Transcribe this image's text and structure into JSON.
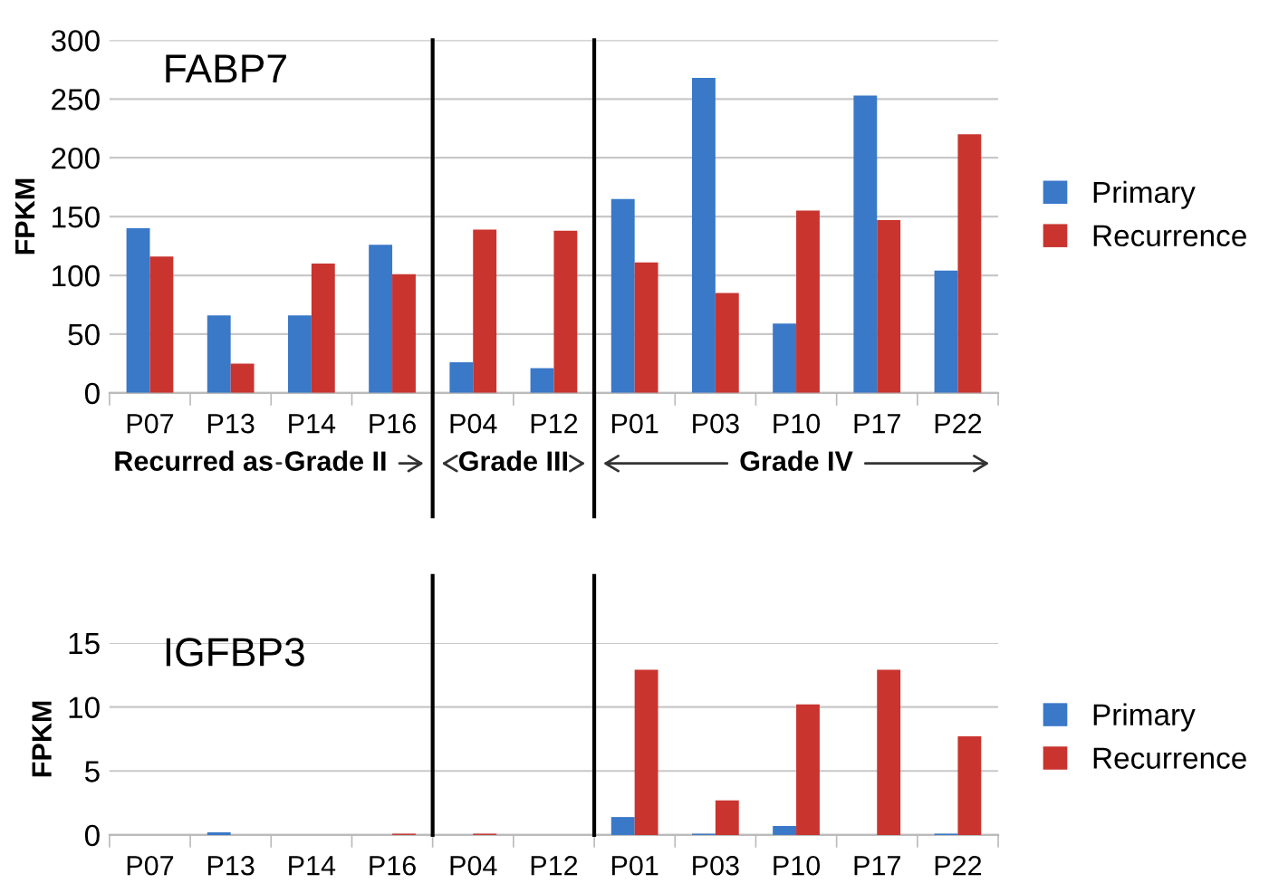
{
  "chart_data": [
    {
      "type": "bar",
      "title": "FABP7",
      "ylabel": "FPKM",
      "categories": [
        "P07",
        "P13",
        "P14",
        "P16",
        "P04",
        "P12",
        "P01",
        "P03",
        "P10",
        "P17",
        "P22"
      ],
      "series": [
        {
          "name": "Primary",
          "color": "#3a78c8",
          "values": [
            140,
            66,
            66,
            126,
            26,
            21,
            165,
            268,
            59,
            253,
            104
          ]
        },
        {
          "name": "Recurrence",
          "color": "#c9342f",
          "values": [
            116,
            25,
            110,
            101,
            139,
            138,
            111,
            85,
            155,
            147,
            220
          ]
        }
      ],
      "ylim": [
        0,
        300
      ],
      "yticks": [
        0,
        50,
        100,
        150,
        200,
        250,
        300
      ],
      "grid": "y",
      "legend": "right",
      "annotations": [
        "Recurred as",
        "Grade II",
        "Grade III",
        "Grade IV"
      ]
    },
    {
      "type": "bar",
      "title": "IGFBP3",
      "ylabel": "FPKM",
      "categories": [
        "P07",
        "P13",
        "P14",
        "P16",
        "P04",
        "P12",
        "P01",
        "P03",
        "P10",
        "P17",
        "P22"
      ],
      "series": [
        {
          "name": "Primary",
          "color": "#3a78c8",
          "values": [
            0,
            0.2,
            0,
            0,
            0,
            0,
            1.4,
            0.1,
            0.7,
            0,
            0.1
          ]
        },
        {
          "name": "Recurrence",
          "color": "#c9342f",
          "values": [
            0,
            0,
            0,
            0.1,
            0.1,
            0,
            12.9,
            2.7,
            10.2,
            12.9,
            7.7
          ]
        }
      ],
      "ylim": [
        0,
        15
      ],
      "yticks": [
        0,
        5,
        10,
        15
      ],
      "grid": "y",
      "legend": "right"
    }
  ]
}
